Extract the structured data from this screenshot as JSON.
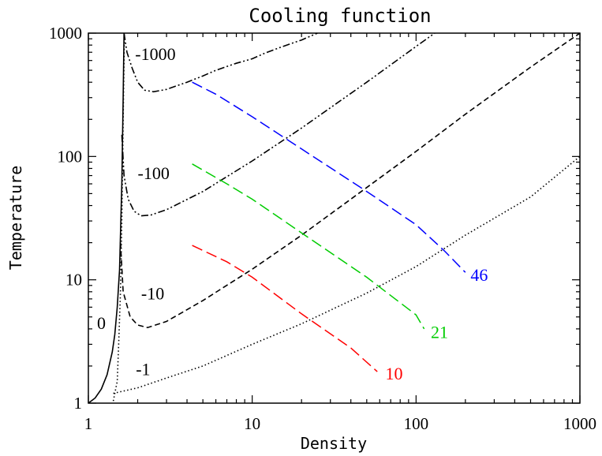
{
  "chart_data": {
    "type": "line",
    "title": "Cooling function",
    "xlabel": "Density",
    "ylabel": "Temperature",
    "x_scale": "log",
    "y_scale": "log",
    "xlim": [
      1,
      1000
    ],
    "ylim": [
      1,
      1000
    ],
    "x_ticks": [
      {
        "value": 1,
        "label": "1"
      },
      {
        "value": 10,
        "label": "10"
      },
      {
        "value": 100,
        "label": "100"
      },
      {
        "value": 1000,
        "label": "1000"
      }
    ],
    "y_ticks": [
      {
        "value": 1,
        "label": "1"
      },
      {
        "value": 10,
        "label": "10"
      },
      {
        "value": 100,
        "label": "100"
      },
      {
        "value": 1000,
        "label": "1000"
      }
    ],
    "grid": false,
    "legend": "none",
    "contours": [
      {
        "label": "0",
        "color": "#000000",
        "style": "solid",
        "label_at": [
          1.13,
          4.5
        ],
        "points": [
          [
            1.0,
            1.0
          ],
          [
            1.1,
            1.1
          ],
          [
            1.2,
            1.3
          ],
          [
            1.3,
            1.7
          ],
          [
            1.4,
            2.6
          ],
          [
            1.45,
            3.6
          ],
          [
            1.5,
            6
          ],
          [
            1.55,
            12
          ],
          [
            1.6,
            60
          ],
          [
            1.63,
            300
          ],
          [
            1.65,
            1000
          ]
        ]
      },
      {
        "label": "-1",
        "color": "#000000",
        "style": "dotted",
        "label_at": [
          1.95,
          1.9
        ],
        "points": [
          [
            1.42,
            1.04
          ],
          [
            1.45,
            1.2
          ],
          [
            1.5,
            1.5
          ],
          [
            1.53,
            3
          ],
          [
            1.57,
            8
          ],
          [
            1.6,
            30
          ],
          [
            1.63,
            200
          ],
          [
            1.66,
            1000
          ]
        ]
      },
      {
        "label": "",
        "color": "#000000",
        "style": "dotted",
        "points": [
          [
            1.42,
            1.2
          ],
          [
            2,
            1.33
          ],
          [
            3,
            1.6
          ],
          [
            5,
            2.0
          ],
          [
            10,
            3.0
          ],
          [
            20,
            4.4
          ],
          [
            50,
            7.8
          ],
          [
            100,
            12.8
          ],
          [
            200,
            23
          ],
          [
            500,
            47
          ],
          [
            1000,
            100
          ]
        ]
      },
      {
        "label": "-10",
        "color": "#000000",
        "style": "dashed",
        "label_at": [
          2.1,
          7.8
        ],
        "points": [
          [
            1.57,
            20
          ],
          [
            1.63,
            8
          ],
          [
            1.8,
            5
          ],
          [
            2.0,
            4.3
          ],
          [
            2.3,
            4.1
          ],
          [
            3,
            4.6
          ],
          [
            5,
            6.8
          ],
          [
            10,
            12.2
          ],
          [
            20,
            23
          ],
          [
            50,
            56
          ],
          [
            100,
            110
          ],
          [
            200,
            220
          ],
          [
            500,
            530
          ],
          [
            1000,
            1000
          ]
        ]
      },
      {
        "label": "-100",
        "color": "#000000",
        "style": "dashdotdot",
        "label_at": [
          2.0,
          74
        ],
        "points": [
          [
            1.6,
            150
          ],
          [
            1.65,
            70
          ],
          [
            1.75,
            45
          ],
          [
            1.9,
            36
          ],
          [
            2.1,
            33
          ],
          [
            2.4,
            33.5
          ],
          [
            3,
            37
          ],
          [
            5,
            52
          ],
          [
            10,
            92
          ],
          [
            20,
            170
          ],
          [
            50,
            400
          ],
          [
            100,
            780
          ],
          [
            130,
            1000
          ]
        ]
      },
      {
        "label": "-1000",
        "color": "#000000",
        "style": "dashdotdot",
        "label_at": [
          1.93,
          680
        ],
        "points": [
          [
            1.65,
            1000
          ],
          [
            1.72,
            700
          ],
          [
            1.85,
            520
          ],
          [
            2.0,
            400
          ],
          [
            2.2,
            345
          ],
          [
            2.5,
            335
          ],
          [
            3,
            350
          ],
          [
            4,
            400
          ],
          [
            5,
            450
          ],
          [
            6,
            500
          ],
          [
            8,
            570
          ],
          [
            10,
            620
          ],
          [
            12,
            690
          ],
          [
            15,
            770
          ],
          [
            20,
            880
          ],
          [
            25,
            1000
          ]
        ]
      },
      {
        "label": "46",
        "color": "#0000ff",
        "style": "longdash",
        "label_at": [
          215,
          11
        ],
        "points": [
          [
            4.3,
            400
          ],
          [
            6,
            320
          ],
          [
            10,
            210
          ],
          [
            20,
            115
          ],
          [
            50,
            52
          ],
          [
            100,
            28
          ],
          [
            150,
            17
          ],
          [
            200,
            11.5
          ]
        ]
      },
      {
        "label": "21",
        "color": "#00cc00",
        "style": "longdash",
        "label_at": [
          123,
          3.8
        ],
        "points": [
          [
            4.3,
            87
          ],
          [
            7,
            60
          ],
          [
            10,
            45
          ],
          [
            20,
            24
          ],
          [
            50,
            10.5
          ],
          [
            100,
            5.2
          ],
          [
            112,
            4.0
          ]
        ]
      },
      {
        "label": "10",
        "color": "#ff0000",
        "style": "longdash",
        "label_at": [
          65,
          1.75
        ],
        "points": [
          [
            4.3,
            19
          ],
          [
            7,
            14
          ],
          [
            10,
            10.5
          ],
          [
            20,
            5.3
          ],
          [
            40,
            2.8
          ],
          [
            58,
            1.8
          ]
        ]
      }
    ]
  }
}
